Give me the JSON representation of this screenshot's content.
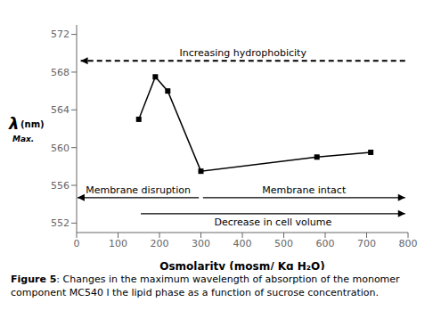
{
  "chart_data": {
    "type": "line",
    "x": [
      150,
      190,
      220,
      300,
      580,
      710
    ],
    "values": [
      563.0,
      567.5,
      566.0,
      557.5,
      559.0,
      559.5
    ],
    "color": "black",
    "marker": "square",
    "xlim": [
      0,
      800
    ],
    "ylim": [
      551.0,
      573.0
    ],
    "xticks": [
      0,
      100,
      200,
      300,
      400,
      500,
      600,
      700,
      800
    ],
    "yticks": [
      552,
      556,
      560,
      564,
      568,
      572
    ],
    "grid": false,
    "xlabel": "Osmolarity (mosm/ Kg H₂O)",
    "ylabel": [
      "λ",
      "Max.",
      "(nm)"
    ],
    "caption_bold": "Figure 5",
    "caption": ": Changes in the maximum wavelength of absorption of the monomer component MC540 l the lipid phase as a function of sucrose concentration.",
    "annotations": [
      {
        "text": "Increasing hydrophobicity",
        "y": 569.2,
        "x_from": 793,
        "x_to": 10,
        "line_style": "dashed"
      },
      {
        "text": "Membrane disruption",
        "y": 554.7,
        "x_from": 295,
        "x_to": 2,
        "line_style": "solid"
      },
      {
        "text": "Membrane intact",
        "y": 554.7,
        "x_from": 305,
        "x_to": 793,
        "line_style": "solid"
      },
      {
        "text": "Decrease in cell volume",
        "y": 553.0,
        "x_from": 155,
        "x_to": 793,
        "line_style": "solid"
      }
    ]
  }
}
